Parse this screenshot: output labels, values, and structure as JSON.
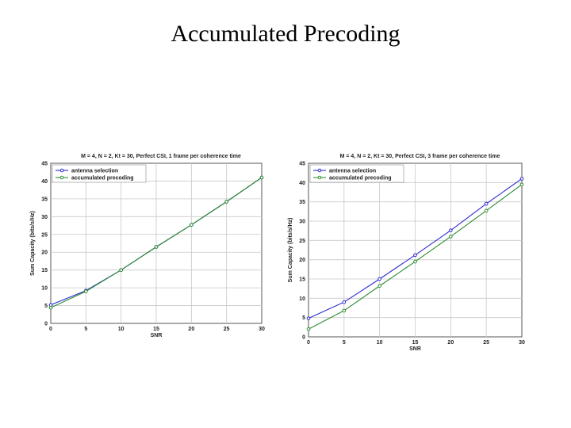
{
  "slide": {
    "title": "Accumulated Precoding"
  },
  "colors": {
    "antenna_selection": "#2a2ad0",
    "accumulated_precoding": "#2e8b2e",
    "grid": "#c8c8c8",
    "axes": "#555555"
  },
  "chart_data": [
    {
      "type": "line",
      "title": "M = 4, N = 2, Kt = 30, Perfect CSI, 1 frame per coherence time",
      "xlabel": "SNR",
      "ylabel": "Sum Capacity (bits/s/Hz)",
      "xlim": [
        0,
        30
      ],
      "ylim": [
        0,
        45
      ],
      "xticks": [
        0,
        5,
        10,
        15,
        20,
        25,
        30
      ],
      "yticks": [
        0,
        5,
        10,
        15,
        20,
        25,
        30,
        35,
        40,
        45
      ],
      "grid": true,
      "legend": "top-left",
      "series": [
        {
          "name": "antenna selection",
          "x": [
            0,
            5,
            10,
            15,
            20,
            25,
            30
          ],
          "values": [
            5.2,
            9.2,
            15.0,
            21.5,
            27.7,
            34.2,
            41.0
          ]
        },
        {
          "name": "accumulated precoding",
          "x": [
            0,
            5,
            10,
            15,
            20,
            25,
            30
          ],
          "values": [
            4.4,
            9.0,
            15.0,
            21.5,
            27.7,
            34.2,
            41.0
          ]
        }
      ]
    },
    {
      "type": "line",
      "title": "M = 4, N = 2, Kt = 30, Perfect CSI, 3 frame per coherence time",
      "xlabel": "SNR",
      "ylabel": "Sum Capacity (bits/s/Hz)",
      "xlim": [
        0,
        30
      ],
      "ylim": [
        0,
        45
      ],
      "xticks": [
        0,
        5,
        10,
        15,
        20,
        25,
        30
      ],
      "yticks": [
        0,
        5,
        10,
        15,
        20,
        25,
        30,
        35,
        40,
        45
      ],
      "grid": true,
      "legend": "top-left",
      "series": [
        {
          "name": "antenna selection",
          "x": [
            0,
            5,
            10,
            15,
            20,
            25,
            30
          ],
          "values": [
            4.8,
            9.0,
            15.0,
            21.2,
            27.6,
            34.5,
            41.0
          ]
        },
        {
          "name": "accumulated precoding",
          "x": [
            0,
            5,
            10,
            15,
            20,
            25,
            30
          ],
          "values": [
            2.0,
            6.8,
            13.2,
            19.5,
            26.0,
            32.7,
            39.5
          ]
        }
      ]
    }
  ]
}
